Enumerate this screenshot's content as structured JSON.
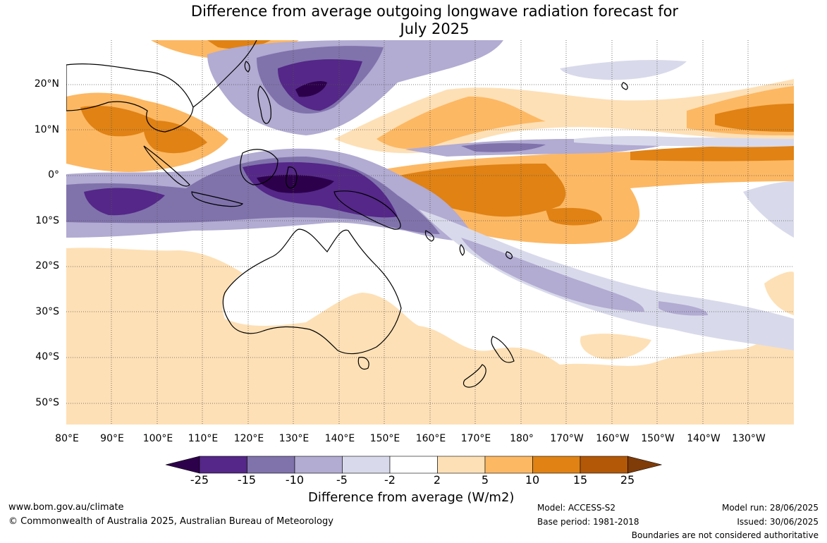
{
  "title": {
    "line1": "Difference from average outgoing longwave radiation forecast for",
    "line2": "July 2025"
  },
  "map": {
    "lat_labels": [
      "20°N",
      "10°N",
      "0°",
      "10°S",
      "20°S",
      "30°S",
      "40°S",
      "50°S"
    ],
    "lon_labels": [
      "80°E",
      "90°E",
      "100°E",
      "110°E",
      "120°E",
      "130°E",
      "140°E",
      "150°E",
      "160°E",
      "170°E",
      "180°",
      "170°W",
      "160°W",
      "150°W",
      "140°W",
      "130°W"
    ]
  },
  "colorbar": {
    "ticks": [
      "-25",
      "-15",
      "-10",
      "-5",
      "-2",
      "2",
      "5",
      "10",
      "15",
      "25"
    ],
    "colors": [
      "#2d004b",
      "#542788",
      "#8073ac",
      "#b2abd2",
      "#d8daeb",
      "#ffffff",
      "#fee0b6",
      "#fdb863",
      "#e08214",
      "#b35806",
      "#7f3b08"
    ],
    "label": "Difference from average (W/m2)"
  },
  "footer": {
    "website": "www.bom.gov.au/climate",
    "copyright": "© Commonwealth of Australia 2025, Australian Bureau of Meteorology",
    "model": "Model: ACCESS-S2",
    "base_period": "Base period: 1981-2018",
    "model_run": "Model run: 28/06/2025",
    "issued": "Issued: 30/06/2025",
    "disclaimer": "Boundaries are not considered authoritative"
  }
}
